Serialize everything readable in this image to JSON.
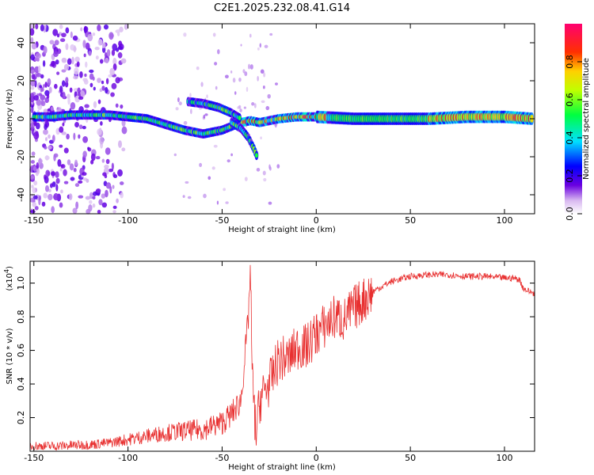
{
  "title": "C2E1.2025.232.08.41.G14",
  "chart_data": [
    {
      "type": "heatmap",
      "xlabel": "Height of straight line (km)",
      "ylabel": "Frequency (Hz)",
      "xlim": [
        -152,
        116
      ],
      "ylim": [
        -50,
        50
      ],
      "x_ticks": [
        -150,
        -100,
        -50,
        0,
        50,
        100
      ],
      "y_ticks": [
        -40,
        -20,
        0,
        20,
        40
      ],
      "colorbar": {
        "label": "Normalized spectral amplitude",
        "range": [
          0,
          1
        ],
        "ticks": [
          0.0,
          0.2,
          0.4,
          0.6,
          0.8
        ],
        "colormap": "rainbow (white-purple-blue-cyan-green-yellow-red-magenta)"
      },
      "features": [
        {
          "name": "main",
          "x": [
            -150,
            -140,
            -130,
            -120,
            -110,
            -100,
            -90,
            -80,
            -70,
            -60,
            -50,
            -40,
            -35,
            -30,
            -20,
            -10,
            0,
            20,
            40,
            60,
            80,
            100,
            115
          ],
          "y": [
            1,
            1,
            2,
            2,
            2,
            1,
            0,
            -3,
            -6,
            -8,
            -6,
            -2,
            -1,
            -2,
            0,
            1,
            1,
            0,
            0,
            0,
            1,
            1,
            0
          ]
        },
        {
          "name": "branch-upper",
          "x": [
            -68,
            -60,
            -52,
            -45,
            -40
          ],
          "y": [
            9,
            8,
            6,
            3,
            0
          ]
        },
        {
          "name": "branch-lower",
          "x": [
            -45,
            -40,
            -36,
            -33,
            -31
          ],
          "y": [
            -2,
            -5,
            -10,
            -16,
            -21
          ]
        }
      ]
    },
    {
      "type": "line",
      "xlabel": "Height of straight line (km)",
      "ylabel": "SNR (10 * v/v)",
      "ylabel_exponent": "(x10",
      "ylabel_exponent_power": "4",
      "exponent_close": ")",
      "xlim": [
        -152,
        116
      ],
      "ylim": [
        0.0,
        1.13
      ],
      "x_ticks": [
        -150,
        -100,
        -50,
        0,
        50,
        100
      ],
      "y_ticks": [
        0.2,
        0.4,
        0.6,
        0.8,
        1.0
      ],
      "color": "#e83030",
      "series": [
        {
          "x": [
            -152,
            -140,
            -130,
            -120,
            -110,
            -100,
            -90,
            -80,
            -70,
            -60,
            -50,
            -45,
            -40,
            -38,
            -36,
            -35,
            -34,
            -33,
            -32,
            -30,
            -28,
            -25,
            -22,
            -20,
            -15,
            -10,
            -5,
            0,
            5,
            10,
            15,
            20,
            30,
            40,
            50,
            60,
            70,
            80,
            90,
            100,
            105,
            108,
            110,
            113,
            116
          ],
          "y": [
            0.03,
            0.03,
            0.035,
            0.04,
            0.05,
            0.07,
            0.09,
            0.11,
            0.12,
            0.13,
            0.17,
            0.22,
            0.3,
            0.55,
            0.8,
            1.1,
            0.45,
            0.25,
            0.1,
            0.3,
            0.35,
            0.4,
            0.48,
            0.55,
            0.55,
            0.62,
            0.62,
            0.7,
            0.75,
            0.8,
            0.78,
            0.85,
            0.95,
            1.01,
            1.04,
            1.05,
            1.05,
            1.04,
            1.04,
            1.03,
            1.03,
            1.02,
            0.97,
            0.95,
            0.94
          ]
        }
      ]
    }
  ]
}
